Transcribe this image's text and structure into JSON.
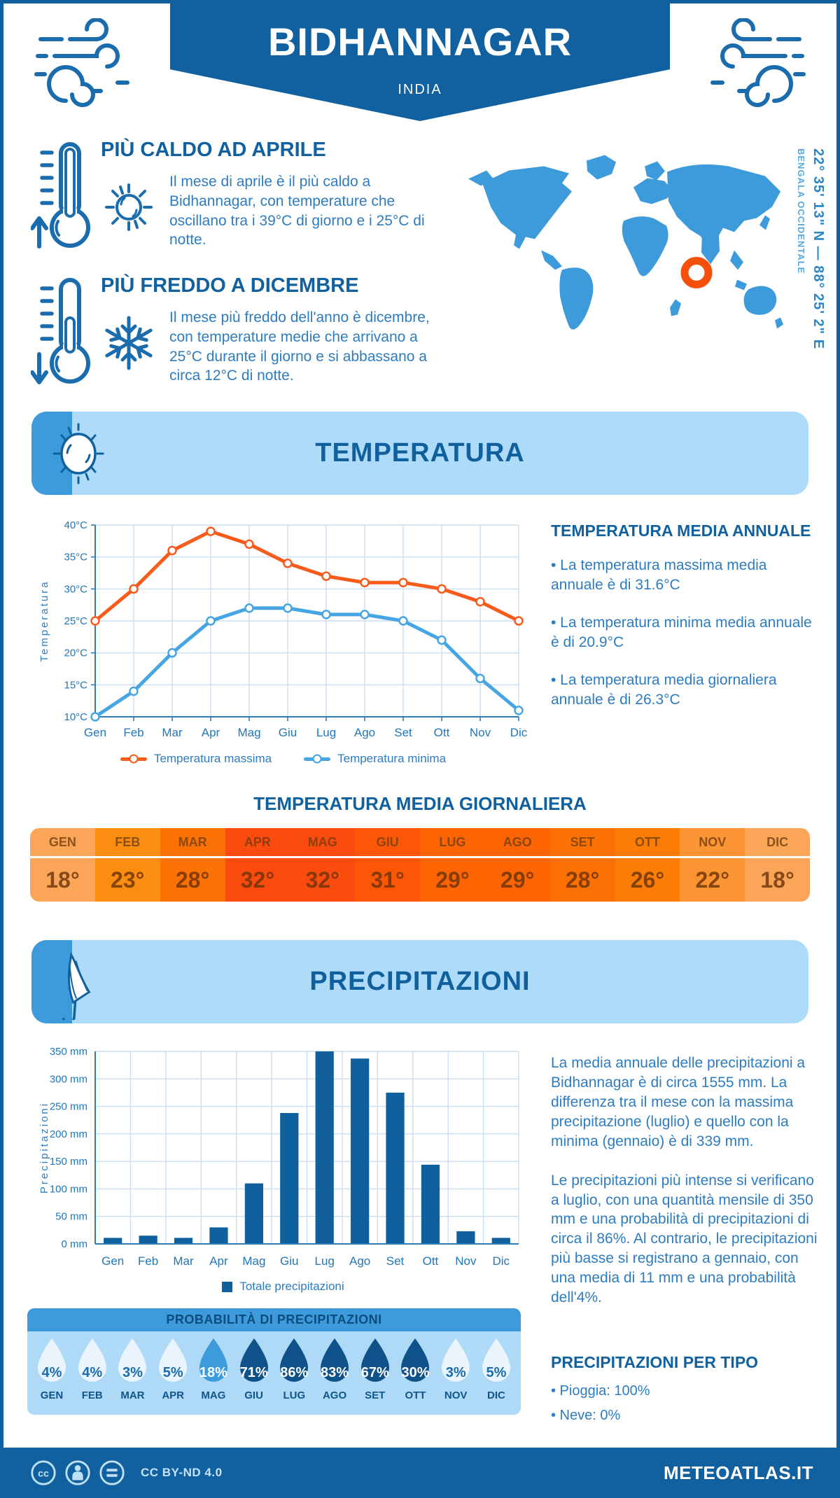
{
  "header": {
    "title": "BIDHANNAGAR",
    "subtitle": "INDIA"
  },
  "location": {
    "coordinates": "22° 35' 13\" N — 88° 25' 2\" E",
    "region": "BENGALA OCCIDENTALE"
  },
  "highlights": [
    {
      "title": "PIÙ CALDO AD APRILE",
      "text": "Il mese di aprile è il più caldo a Bidhannagar, con temperature che oscillano tra i 39°C di giorno e i 25°C di notte."
    },
    {
      "title": "PIÙ FREDDO A DICEMBRE",
      "text": "Il mese più freddo dell'anno è dicembre, con temperature medie che arrivano a 25°C durante il giorno e si abbassano a circa 12°C di notte."
    }
  ],
  "temperature_section": {
    "banner": "TEMPERATURA",
    "annual_title": "TEMPERATURA MEDIA ANNUALE",
    "annual_bullets": [
      "• La temperatura massima media annuale è di 31.6°C",
      "• La temperatura minima media annuale è di 20.9°C",
      "• La temperatura media giornaliera annuale è di 26.3°C"
    ],
    "daily_title": "TEMPERATURA MEDIA GIORNALIERA"
  },
  "daily_table": {
    "months": [
      "GEN",
      "FEB",
      "MAR",
      "APR",
      "MAG",
      "GIU",
      "LUG",
      "AGO",
      "SET",
      "OTT",
      "NOV",
      "DIC"
    ],
    "values": [
      "18°",
      "23°",
      "28°",
      "32°",
      "32°",
      "31°",
      "29°",
      "29°",
      "28°",
      "26°",
      "22°",
      "18°"
    ],
    "colors": [
      "#FAA558",
      "#FB8E11",
      "#FC7103",
      "#FC4B0E",
      "#FC4B0E",
      "#FC5706",
      "#FC6404",
      "#FC6404",
      "#FC7103",
      "#FB7D06",
      "#FB9433",
      "#FAA558"
    ]
  },
  "precipitation_section": {
    "banner": "PRECIPITAZIONI",
    "paragraphs": [
      "La media annuale delle precipitazioni a Bidhannagar è di circa 1555 mm. La differenza tra il mese con la massima precipitazione (luglio) e quello con la minima (gennaio) è di 339 mm.",
      "Le precipitazioni più intense si verificano a luglio, con una quantità mensile di 350 mm e una probabilità di precipitazioni di circa il 86%. Al contrario, le precipitazioni più basse si registrano a gennaio, con una media di 11 mm e una probabilità dell'4%."
    ],
    "probability": {
      "title": "PROBABILITÀ DI PRECIPITAZIONI",
      "months": [
        "GEN",
        "FEB",
        "MAR",
        "APR",
        "MAG",
        "GIU",
        "LUG",
        "AGO",
        "SET",
        "OTT",
        "NOV",
        "DIC"
      ],
      "values": [
        4,
        4,
        3,
        5,
        18,
        71,
        86,
        83,
        67,
        30,
        3,
        5
      ],
      "colors": {
        "light": "#EAF4FC",
        "medium": "#3D9BDC",
        "dark": "#0F5189"
      }
    },
    "types_title": "PRECIPITAZIONI PER TIPO",
    "types_bullets": [
      "• Pioggia: 100%",
      "• Neve: 0%"
    ]
  },
  "chart_data": [
    {
      "type": "line",
      "title": "Temperatura",
      "x": [
        "Gen",
        "Feb",
        "Mar",
        "Apr",
        "Mag",
        "Giu",
        "Lug",
        "Ago",
        "Set",
        "Ott",
        "Nov",
        "Dic"
      ],
      "ylabel": "Temperatura",
      "ylim": [
        10,
        40
      ],
      "ytick_step": 5,
      "y_suffix": "°C",
      "grid": true,
      "legend_position": "bottom",
      "series": [
        {
          "name": "Temperatura massima",
          "color": "#F95B1D",
          "values": [
            25,
            30,
            36,
            39,
            37,
            34,
            32,
            31,
            31,
            30,
            28,
            25
          ]
        },
        {
          "name": "Temperatura minima",
          "color": "#46A5E2",
          "values": [
            10,
            14,
            20,
            25,
            27,
            27,
            26,
            26,
            25,
            22,
            16,
            11
          ]
        }
      ]
    },
    {
      "type": "bar",
      "title": "Precipitazioni",
      "categories": [
        "Gen",
        "Feb",
        "Mar",
        "Apr",
        "Mag",
        "Giu",
        "Lug",
        "Ago",
        "Set",
        "Ott",
        "Nov",
        "Dic"
      ],
      "values": [
        11,
        15,
        11,
        30,
        110,
        238,
        350,
        337,
        275,
        144,
        23,
        11
      ],
      "series_name": "Totale precipitazioni",
      "ylabel": "Precipitazioni",
      "ylim": [
        0,
        350
      ],
      "ytick_step": 50,
      "y_suffix": " mm",
      "grid": true,
      "color": "#11609E"
    }
  ],
  "footer": {
    "license": "CC BY-ND 4.0",
    "site": "METEOATLAS.IT"
  }
}
